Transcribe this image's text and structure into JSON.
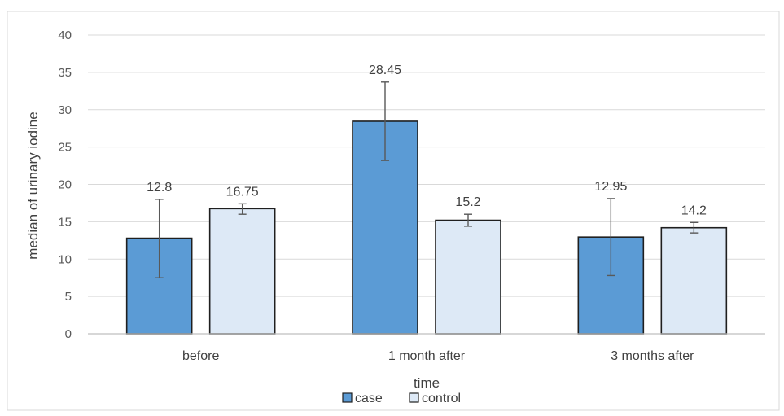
{
  "chart_data": {
    "type": "bar",
    "title": "",
    "xlabel": "time",
    "ylabel": "median of urinary iodine",
    "categories": [
      "before",
      "1 month after",
      "3 months after"
    ],
    "ylim": [
      0,
      40
    ],
    "yticks": [
      0,
      5,
      10,
      15,
      20,
      25,
      30,
      35,
      40
    ],
    "grid": true,
    "legend_position": "bottom",
    "series": [
      {
        "name": "case",
        "color": "#5b9bd5",
        "values": [
          12.8,
          28.45,
          12.95
        ],
        "labels": [
          "12.8",
          "28.45",
          "12.95"
        ],
        "error_low": [
          7.5,
          23.2,
          7.8
        ],
        "error_high": [
          18.0,
          33.7,
          18.1
        ]
      },
      {
        "name": "control",
        "color": "#dde9f6",
        "values": [
          16.75,
          15.2,
          14.2
        ],
        "labels": [
          "16.75",
          "15.2",
          "14.2"
        ],
        "error_low": [
          16.0,
          14.4,
          13.5
        ],
        "error_high": [
          17.4,
          16.0,
          14.9
        ]
      }
    ]
  }
}
